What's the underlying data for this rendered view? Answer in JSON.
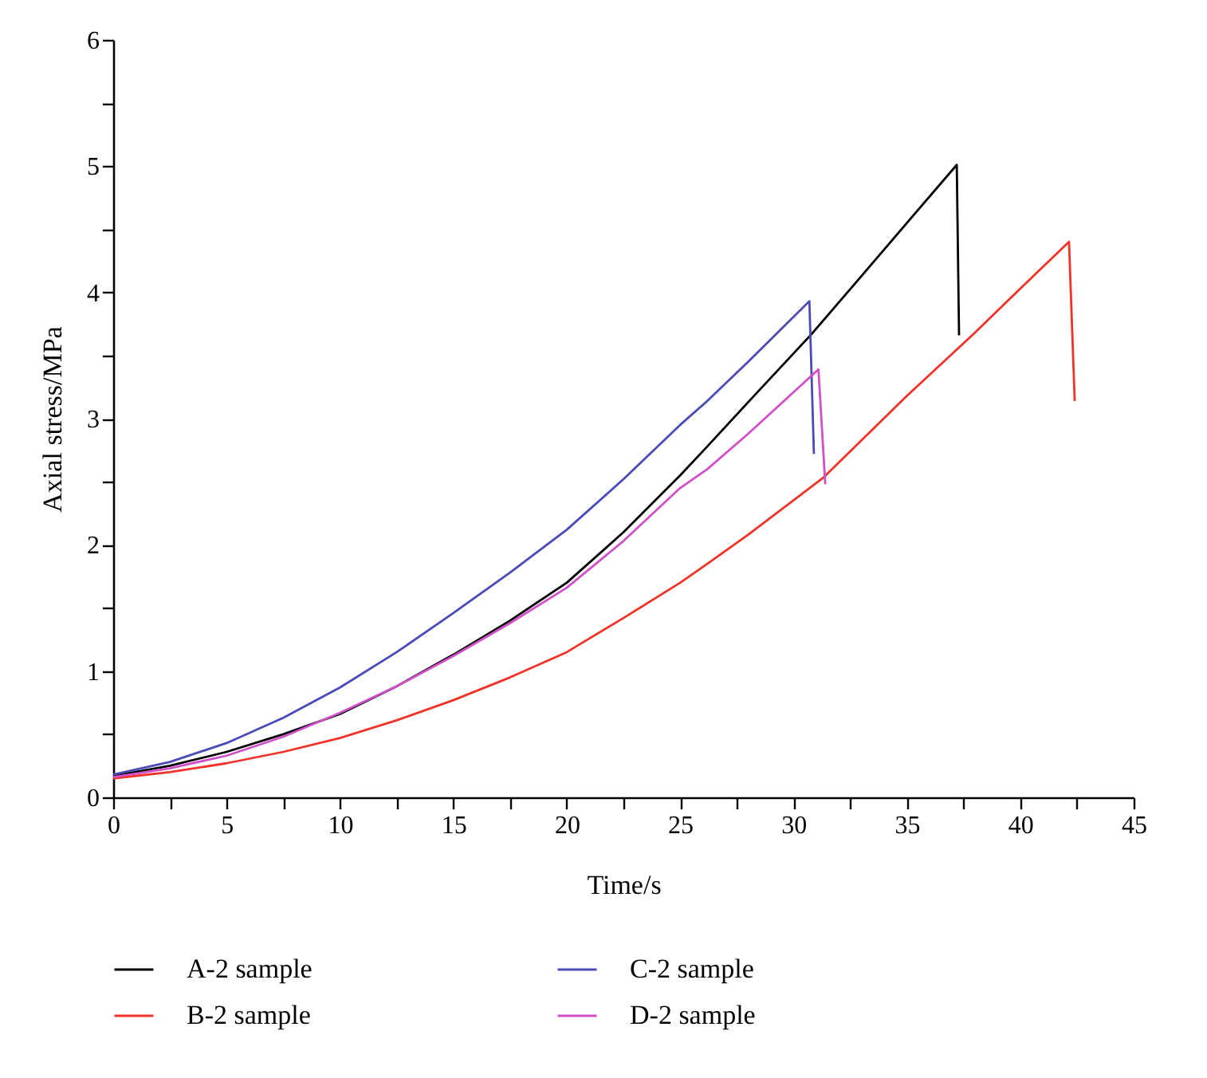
{
  "chart_data": {
    "type": "line",
    "xlabel": "Time/s",
    "ylabel": "Axial stress/MPa",
    "xlim": [
      0,
      45
    ],
    "ylim": [
      0,
      6
    ],
    "xticks": [
      0,
      {
        "value": 2.5,
        "label": null
      },
      5,
      {
        "value": 7.5,
        "label": null
      },
      10,
      {
        "value": 12.5,
        "label": null
      },
      15,
      {
        "value": 17.5,
        "label": null
      },
      20,
      {
        "value": 22.5,
        "label": null
      },
      25,
      {
        "value": 27.5,
        "label": null
      },
      30,
      {
        "value": 32.5,
        "label": null
      },
      35,
      {
        "value": 37.5,
        "label": null
      },
      40,
      {
        "value": 42.5,
        "label": null
      },
      45
    ],
    "yticks": [
      0,
      {
        "value": 0.5,
        "label": null
      },
      1,
      {
        "value": 1.5,
        "label": null
      },
      2,
      {
        "value": 2.5,
        "label": null
      },
      3,
      {
        "value": 3.5,
        "label": null
      },
      4,
      {
        "value": 4.5,
        "label": null
      },
      5,
      {
        "value": 5.5,
        "label": null
      },
      6
    ],
    "grid": false,
    "legend": "bottom",
    "marker": "none",
    "line_style": "solid",
    "series": [
      {
        "name": "A-2 sample",
        "color": "#000000",
        "x": [
          0,
          2.5,
          5,
          7.5,
          10,
          12.5,
          15,
          17.5,
          20,
          22.5,
          25,
          26.2,
          28,
          30.8,
          33,
          35,
          37.2,
          37.3
        ],
        "values": [
          0.17,
          0.25,
          0.36,
          0.5,
          0.66,
          0.88,
          1.13,
          1.4,
          1.7,
          2.1,
          2.55,
          2.78,
          3.13,
          3.67,
          4.13,
          4.55,
          5.01,
          3.66
        ]
      },
      {
        "name": "B-2 sample",
        "color": "#f03228",
        "x": [
          0,
          2.5,
          5,
          7.5,
          10,
          12.5,
          15,
          17.5,
          20,
          22.5,
          25,
          26.2,
          28,
          31.3,
          35,
          38,
          40,
          42.15,
          42.4
        ],
        "values": [
          0.15,
          0.2,
          0.27,
          0.36,
          0.47,
          0.61,
          0.77,
          0.95,
          1.15,
          1.42,
          1.7,
          1.85,
          2.08,
          2.53,
          3.18,
          3.68,
          4.03,
          4.4,
          3.14
        ]
      },
      {
        "name": "C-2 sample",
        "color": "#4a4ab8",
        "x": [
          0,
          2.5,
          5,
          7.5,
          10,
          12.5,
          15,
          17.5,
          20,
          22.5,
          25,
          26.2,
          28,
          30.7,
          30.9
        ],
        "values": [
          0.18,
          0.28,
          0.43,
          0.63,
          0.87,
          1.15,
          1.46,
          1.78,
          2.12,
          2.52,
          2.95,
          3.14,
          3.45,
          3.93,
          2.72
        ]
      },
      {
        "name": "D-2 sample",
        "color": "#d050c8",
        "x": [
          0,
          2.5,
          5,
          7.5,
          10,
          12.5,
          15,
          17.5,
          20,
          22.5,
          25,
          26.2,
          28,
          31.1,
          31.4
        ],
        "values": [
          0.16,
          0.23,
          0.33,
          0.48,
          0.67,
          0.88,
          1.12,
          1.38,
          1.66,
          2.03,
          2.45,
          2.6,
          2.88,
          3.39,
          2.48
        ]
      }
    ]
  }
}
